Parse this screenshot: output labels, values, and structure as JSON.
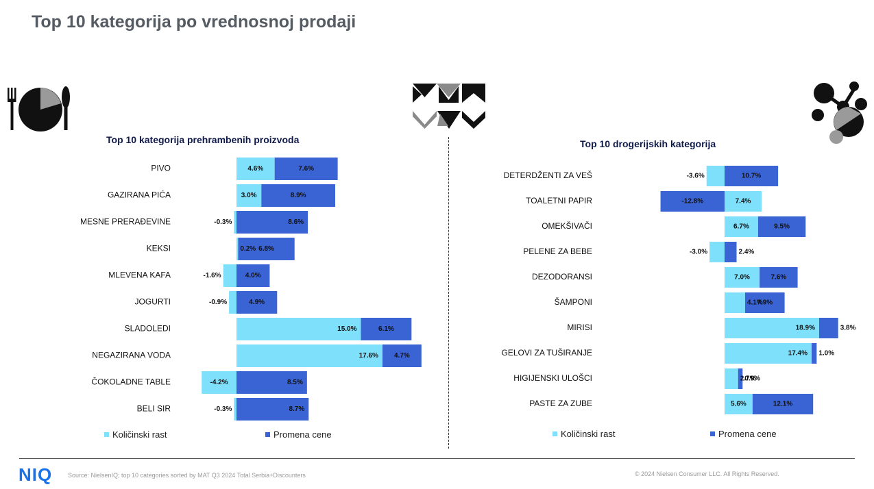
{
  "page": {
    "title": "Top 10 kategorija po vrednosnoj prodaji",
    "source": "Source: NielsenIQ; top 10 categories sorted by MAT Q3 2024 Total Serbia+Discounters",
    "copyright": "© 2024 Nielsen Consumer LLC. All Rights Reserved.",
    "logo": "NIQ"
  },
  "icons": [
    "plate-cutlery-icon",
    "brand-chevron-pattern-icon",
    "molecule-icon"
  ],
  "colors": {
    "kolicinski": "#7ee0fb",
    "promena": "#3a63d4",
    "title": "#555b63",
    "logo": "#1a73e8"
  },
  "chart_data": [
    {
      "type": "bar",
      "stacked": true,
      "orientation": "horizontal",
      "title": "Top 10 kategorija prehrambenih proizvoda",
      "categories": [
        "PIVO",
        "GAZIRANA PIĆA",
        "MESNE PRERAĐEVINE",
        "KEKSI",
        "MLEVENA KAFA",
        "JOGURTI",
        "SLADOLEDI",
        "NEGAZIRANA VODA",
        "ČOKOLADNE TABLE",
        "BELI SIR"
      ],
      "series": [
        {
          "name": "Količinski rast",
          "values": [
            4.6,
            3.0,
            -0.3,
            0.2,
            -1.6,
            -0.9,
            15.0,
            17.6,
            -4.2,
            -0.3
          ],
          "labels": [
            "4.6%",
            "3.0%",
            "-0.3%",
            "0.2%",
            "-1.6%",
            "-0.9%",
            "15.0%",
            "17.6%",
            "-4.2%",
            "-0.3%"
          ]
        },
        {
          "name": "Promena cene",
          "values": [
            7.6,
            8.9,
            8.6,
            6.8,
            4.0,
            4.9,
            6.1,
            4.7,
            8.5,
            8.7
          ],
          "labels": [
            "7.6%",
            "8.9%",
            "8.6%",
            "6.8%",
            "4.0%",
            "4.9%",
            "6.1%",
            "4.7%",
            "8.5%",
            "8.7%"
          ]
        }
      ],
      "legend": "bottom"
    },
    {
      "type": "bar",
      "stacked": true,
      "orientation": "horizontal",
      "title": "Top 10 drogerijskih kategorija",
      "categories": [
        "DETERDŽENTI ZA VEŠ",
        "TOALETNI PAPIR",
        "OMEKŠIVAČI",
        "PELENE ZA BEBE",
        "DEZODORANSI",
        "ŠAMPONI",
        "MIRISI",
        "GELOVI ZA TUŠIRANJE",
        "HIGIJENSKI ULOŠCI",
        "PASTE ZA ZUBE"
      ],
      "series": [
        {
          "name": "Količinski rast",
          "values": [
            -3.6,
            7.4,
            6.7,
            -3.0,
            7.0,
            4.1,
            18.9,
            17.4,
            2.7,
            5.6
          ],
          "labels": [
            "-3.6%",
            "7.4%",
            "6.7%",
            "-3.0%",
            "7.0%",
            "4.1%",
            "18.9%",
            "17.4%",
            "2.7%",
            "5.6%"
          ]
        },
        {
          "name": "Promena cene",
          "values": [
            10.7,
            -12.8,
            9.5,
            2.4,
            7.6,
            7.9,
            3.8,
            1.0,
            0.9,
            12.1
          ],
          "labels": [
            "10.7%",
            "-12.8%",
            "9.5%",
            "2.4%",
            "7.6%",
            "7.9%",
            "3.8%",
            "1.0%",
            "0.9%",
            "12.1%"
          ]
        }
      ],
      "legend": "bottom"
    }
  ]
}
